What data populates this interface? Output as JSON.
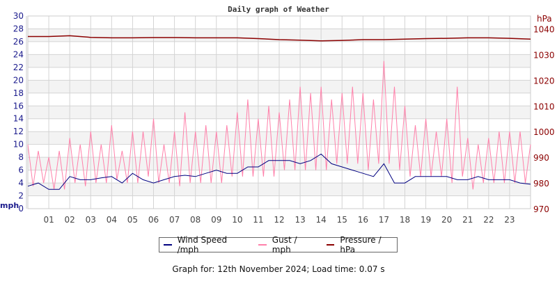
{
  "chart_data": {
    "type": "line",
    "title": "Daily graph of Weather",
    "ylabel_left": "mph",
    "ylabel_right": "hPa",
    "ylim_left": [
      0,
      30
    ],
    "ylim_right": [
      970,
      1045
    ],
    "yticks_left": [
      "0",
      "2",
      "4",
      "6",
      "8",
      "10",
      "12",
      "14",
      "16",
      "18",
      "20",
      "22",
      "24",
      "26",
      "28",
      "30"
    ],
    "yticks_right": [
      "970",
      "980",
      "990",
      "1000",
      "1010",
      "1020",
      "1030",
      "1040"
    ],
    "xlim_hours": [
      0,
      24
    ],
    "xticks": [
      "01",
      "02",
      "03",
      "04",
      "05",
      "06",
      "07",
      "08",
      "09",
      "10",
      "11",
      "12",
      "13",
      "14",
      "15",
      "16",
      "17",
      "18",
      "19",
      "20",
      "21",
      "22",
      "23"
    ],
    "grid": true,
    "legend_placement": "bottom",
    "series": [
      {
        "name": "Wind Speed /mph",
        "axis": "left",
        "color": "#000080",
        "step_hours": 0.5,
        "values": [
          3.5,
          4,
          3,
          3,
          5,
          4.5,
          4.5,
          4.8,
          5,
          4,
          5.5,
          4.5,
          4,
          4.5,
          5,
          5.2,
          5,
          5.5,
          6,
          5.5,
          5.5,
          6.5,
          6.5,
          7.5,
          7.5,
          7.5,
          7,
          7.5,
          8.5,
          7,
          6.5,
          6,
          5.5,
          5,
          7,
          4,
          4,
          5,
          5,
          5,
          5,
          4.5,
          4.5,
          5,
          4.5,
          4.5,
          4.5,
          4,
          3.8
        ]
      },
      {
        "name": "Gust / mph",
        "axis": "left",
        "color": "#ff80aa",
        "step_hours": 0.25,
        "values": [
          10,
          3.5,
          9,
          4,
          8,
          3,
          9,
          3,
          11,
          4,
          10,
          3.5,
          12,
          4,
          10,
          4,
          13,
          4.5,
          9,
          4,
          12,
          4,
          12,
          5,
          14,
          4,
          10,
          4,
          12,
          3.5,
          15,
          4,
          12,
          4,
          13,
          4,
          12,
          4,
          13,
          5,
          15,
          5,
          17,
          5,
          14,
          5,
          16,
          5,
          15,
          6,
          17,
          6,
          19,
          6,
          18,
          6,
          19,
          6,
          17,
          7,
          18,
          7,
          19,
          7,
          18,
          6,
          17,
          7,
          23,
          7,
          19,
          6,
          16,
          5,
          13,
          5,
          14,
          5,
          12,
          5,
          14,
          4,
          19,
          5,
          11,
          3,
          10,
          4,
          11,
          4,
          12,
          4,
          12,
          4,
          12,
          4,
          10
        ]
      },
      {
        "name": "Pressure / hPa",
        "axis": "right",
        "color": "#8b0000",
        "step_hours": 1,
        "values": [
          1037,
          1037,
          1037.3,
          1036.7,
          1036.5,
          1036.5,
          1036.6,
          1036.6,
          1036.5,
          1036.5,
          1036.5,
          1036.2,
          1035.8,
          1035.6,
          1035.3,
          1035.5,
          1035.8,
          1035.8,
          1036,
          1036.2,
          1036.3,
          1036.5,
          1036.5,
          1036.3,
          1036
        ]
      }
    ]
  },
  "footer": "Graph for: 12th November 2024; Load time: 0.07 s"
}
